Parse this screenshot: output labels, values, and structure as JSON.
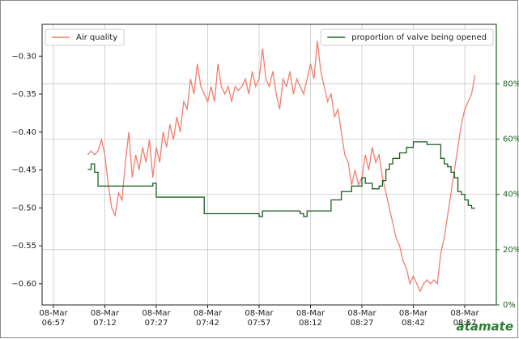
{
  "chart_data": {
    "type": "line",
    "x": [
      "08-Mar 07:07",
      "08-Mar 07:08",
      "08-Mar 07:09",
      "08-Mar 07:10",
      "08-Mar 07:11",
      "08-Mar 07:12",
      "08-Mar 07:13",
      "08-Mar 07:14",
      "08-Mar 07:15",
      "08-Mar 07:16",
      "08-Mar 07:17",
      "08-Mar 07:18",
      "08-Mar 07:19",
      "08-Mar 07:20",
      "08-Mar 07:21",
      "08-Mar 07:22",
      "08-Mar 07:23",
      "08-Mar 07:24",
      "08-Mar 07:25",
      "08-Mar 07:26",
      "08-Mar 07:27",
      "08-Mar 07:28",
      "08-Mar 07:29",
      "08-Mar 07:30",
      "08-Mar 07:31",
      "08-Mar 07:32",
      "08-Mar 07:33",
      "08-Mar 07:34",
      "08-Mar 07:35",
      "08-Mar 07:36",
      "08-Mar 07:37",
      "08-Mar 07:38",
      "08-Mar 07:39",
      "08-Mar 07:40",
      "08-Mar 07:41",
      "08-Mar 07:42",
      "08-Mar 07:43",
      "08-Mar 07:44",
      "08-Mar 07:45",
      "08-Mar 07:46",
      "08-Mar 07:47",
      "08-Mar 07:48",
      "08-Mar 07:49",
      "08-Mar 07:50",
      "08-Mar 07:51",
      "08-Mar 07:52",
      "08-Mar 07:53",
      "08-Mar 07:54",
      "08-Mar 07:55",
      "08-Mar 07:56",
      "08-Mar 07:57",
      "08-Mar 07:58",
      "08-Mar 07:59",
      "08-Mar 08:00",
      "08-Mar 08:01",
      "08-Mar 08:02",
      "08-Mar 08:03",
      "08-Mar 08:04",
      "08-Mar 08:05",
      "08-Mar 08:06",
      "08-Mar 08:07",
      "08-Mar 08:08",
      "08-Mar 08:09",
      "08-Mar 08:10",
      "08-Mar 08:11",
      "08-Mar 08:12",
      "08-Mar 08:13",
      "08-Mar 08:14",
      "08-Mar 08:15",
      "08-Mar 08:16",
      "08-Mar 08:17",
      "08-Mar 08:18",
      "08-Mar 08:19",
      "08-Mar 08:20",
      "08-Mar 08:21",
      "08-Mar 08:22",
      "08-Mar 08:23",
      "08-Mar 08:24",
      "08-Mar 08:25",
      "08-Mar 08:26",
      "08-Mar 08:27",
      "08-Mar 08:28",
      "08-Mar 08:29",
      "08-Mar 08:30",
      "08-Mar 08:31",
      "08-Mar 08:32",
      "08-Mar 08:33",
      "08-Mar 08:34",
      "08-Mar 08:35",
      "08-Mar 08:36",
      "08-Mar 08:37",
      "08-Mar 08:38",
      "08-Mar 08:39",
      "08-Mar 08:40",
      "08-Mar 08:41",
      "08-Mar 08:42",
      "08-Mar 08:43",
      "08-Mar 08:44",
      "08-Mar 08:45",
      "08-Mar 08:46",
      "08-Mar 08:47",
      "08-Mar 08:48",
      "08-Mar 08:49",
      "08-Mar 08:50",
      "08-Mar 08:51",
      "08-Mar 08:52",
      "08-Mar 08:53",
      "08-Mar 08:54",
      "08-Mar 08:55",
      "08-Mar 08:56",
      "08-Mar 08:57",
      "08-Mar 08:58",
      "08-Mar 08:59",
      "08-Mar 09:00"
    ],
    "series": [
      {
        "name": "Air quality",
        "color": "#f07f6f",
        "axis": "y",
        "values": [
          -0.43,
          -0.425,
          -0.43,
          -0.425,
          -0.41,
          -0.43,
          -0.47,
          -0.5,
          -0.51,
          -0.48,
          -0.49,
          -0.44,
          -0.4,
          -0.46,
          -0.43,
          -0.45,
          -0.42,
          -0.44,
          -0.41,
          -0.46,
          -0.42,
          -0.44,
          -0.4,
          -0.42,
          -0.39,
          -0.41,
          -0.38,
          -0.4,
          -0.36,
          -0.37,
          -0.33,
          -0.35,
          -0.31,
          -0.34,
          -0.35,
          -0.36,
          -0.34,
          -0.36,
          -0.31,
          -0.34,
          -0.35,
          -0.34,
          -0.36,
          -0.34,
          -0.345,
          -0.34,
          -0.33,
          -0.35,
          -0.32,
          -0.34,
          -0.33,
          -0.29,
          -0.33,
          -0.34,
          -0.32,
          -0.35,
          -0.37,
          -0.33,
          -0.34,
          -0.32,
          -0.35,
          -0.33,
          -0.34,
          -0.35,
          -0.33,
          -0.31,
          -0.33,
          -0.28,
          -0.32,
          -0.34,
          -0.36,
          -0.35,
          -0.38,
          -0.37,
          -0.4,
          -0.43,
          -0.44,
          -0.47,
          -0.45,
          -0.47,
          -0.46,
          -0.43,
          -0.45,
          -0.42,
          -0.44,
          -0.43,
          -0.46,
          -0.48,
          -0.5,
          -0.52,
          -0.54,
          -0.55,
          -0.57,
          -0.58,
          -0.6,
          -0.59,
          -0.6,
          -0.61,
          -0.6,
          -0.595,
          -0.6,
          -0.595,
          -0.6,
          -0.56,
          -0.54,
          -0.51,
          -0.48,
          -0.45,
          -0.42,
          -0.39,
          -0.37,
          -0.36,
          -0.35,
          -0.325
        ]
      },
      {
        "name": "proportion of valve being opened",
        "color": "#1b5e20",
        "axis": "y2",
        "step": true,
        "values": [
          49,
          51,
          48,
          43,
          43,
          43,
          43,
          43,
          43,
          43,
          43,
          43,
          43,
          43,
          43,
          43,
          43,
          43,
          43,
          44,
          39,
          39,
          39,
          39,
          39,
          39,
          39,
          39,
          39,
          39,
          39,
          39,
          39,
          39,
          33,
          33,
          33,
          33,
          33,
          33,
          33,
          33,
          33,
          33,
          33,
          33,
          33,
          33,
          33,
          33,
          32,
          34,
          34,
          34,
          34,
          34,
          34,
          34,
          34,
          34,
          34,
          34,
          33,
          32,
          34,
          34,
          34,
          34,
          34,
          34,
          34,
          38,
          38,
          38,
          41,
          41,
          41,
          43,
          43,
          43,
          46,
          44,
          44,
          42,
          42,
          43,
          45,
          49,
          51,
          53,
          53,
          55,
          55,
          57,
          57,
          59,
          59,
          59,
          59,
          58,
          58,
          58,
          58,
          53,
          51,
          50,
          48,
          46,
          41,
          40,
          38,
          36,
          35,
          35
        ]
      }
    ],
    "xticks": [
      "08-Mar 06:57",
      "08-Mar 07:12",
      "08-Mar 07:27",
      "08-Mar 07:42",
      "08-Mar 07:57",
      "08-Mar 08:12",
      "08-Mar 08:27",
      "08-Mar 08:42",
      "08-Mar 08:57"
    ],
    "ylim": [
      -0.628,
      -0.258
    ],
    "yticks": [
      {
        "value": -0.3,
        "label": "−0.30"
      },
      {
        "value": -0.35,
        "label": "−0.35"
      },
      {
        "value": -0.4,
        "label": "−0.40"
      },
      {
        "value": -0.45,
        "label": "−0.45"
      },
      {
        "value": -0.5,
        "label": "−0.50"
      },
      {
        "value": -0.55,
        "label": "−0.55"
      },
      {
        "value": -0.6,
        "label": "−0.60"
      }
    ],
    "y2lim": [
      0,
      101.5
    ],
    "y2ticks": [
      {
        "value": 0,
        "label": "0%"
      },
      {
        "value": 20,
        "label": "20%"
      },
      {
        "value": 40,
        "label": "40%"
      },
      {
        "value": 60,
        "label": "60%"
      },
      {
        "value": 80,
        "label": "80%"
      }
    ],
    "y2color": "#1b5e20",
    "grid": true,
    "logo": "atamate"
  }
}
